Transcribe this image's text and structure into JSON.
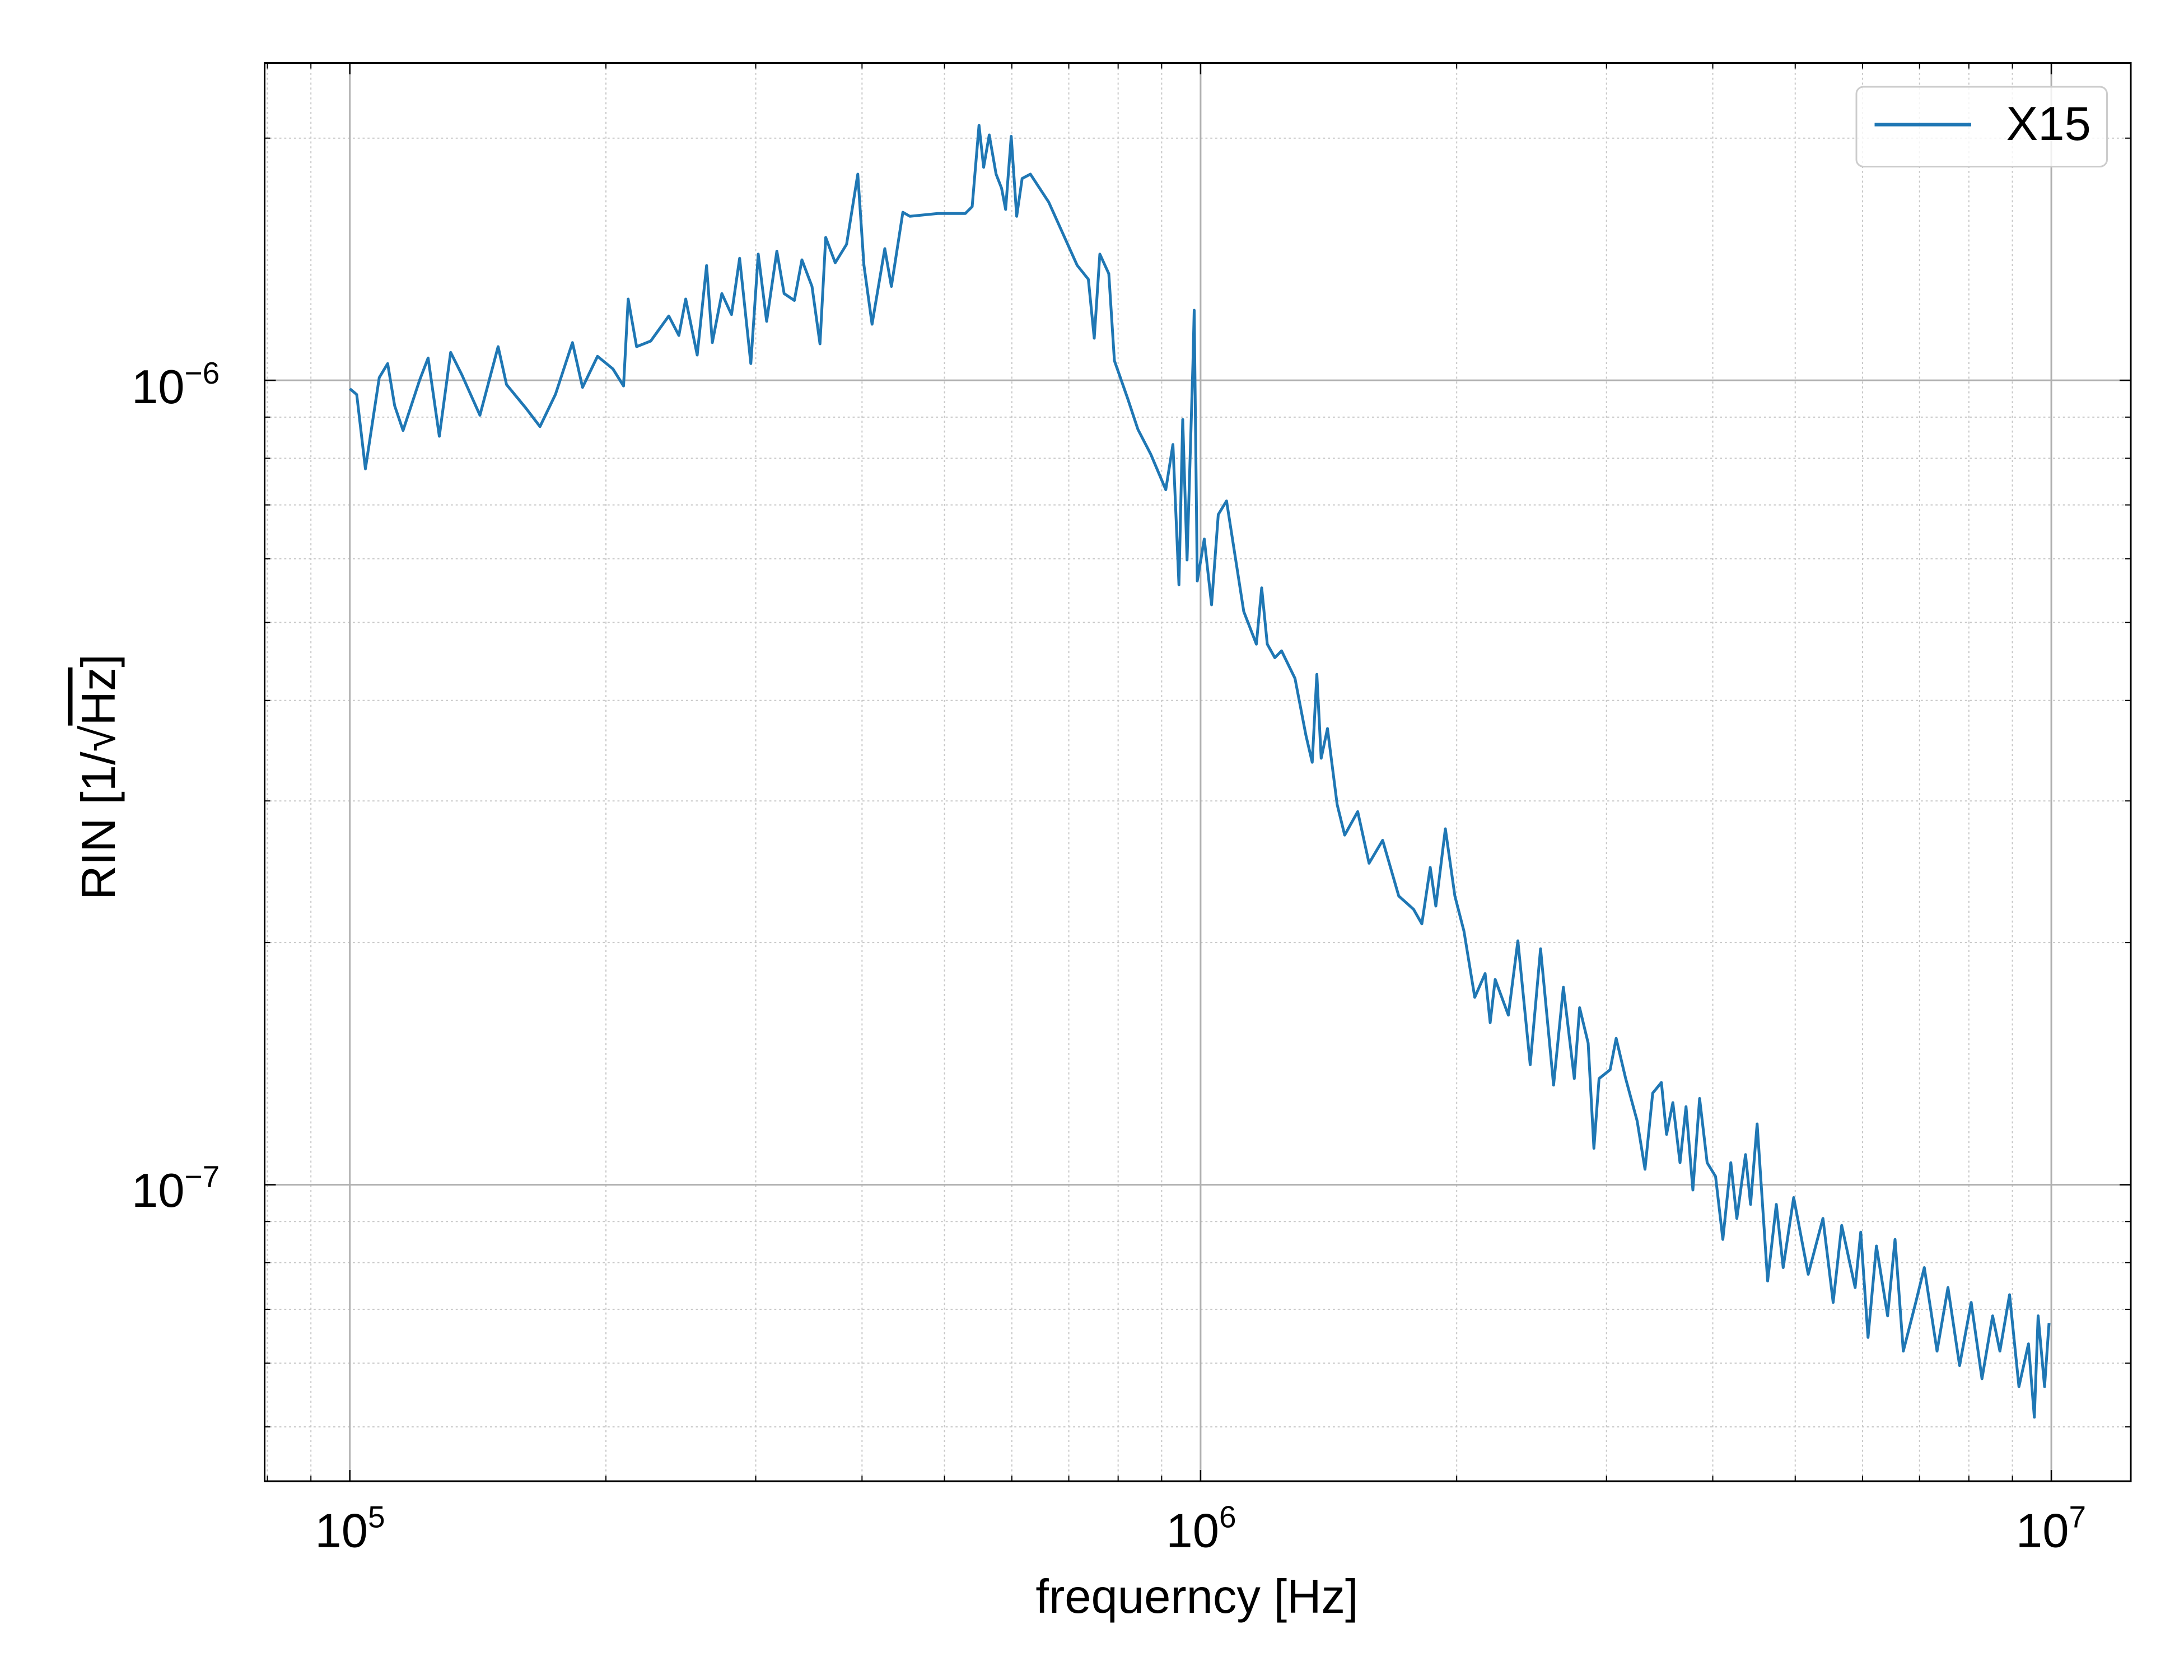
{
  "chart_data": {
    "type": "line",
    "title": "",
    "xlabel": "frequerncy [Hz]",
    "ylabel_prefix": "RIN [1/",
    "ylabel_sqrt": "Hz",
    "ylabel_suffix": "]",
    "xscale": "log",
    "yscale": "log",
    "xlim": [
      79400,
      12400000
    ],
    "ylim": [
      4.28e-08,
      2.48e-06
    ],
    "grid": "major solid, minor dotted",
    "legend_position": "top-right",
    "x_ticks": [
      {
        "base": "10",
        "exp": "5",
        "value": 100000
      },
      {
        "base": "10",
        "exp": "6",
        "value": 1000000
      },
      {
        "base": "10",
        "exp": "7",
        "value": 10000000
      }
    ],
    "y_ticks": [
      {
        "base": "10",
        "exp": "−6",
        "value": 1e-06
      },
      {
        "base": "10",
        "exp": "−7",
        "value": 1e-07
      }
    ],
    "series": [
      {
        "name": "X15",
        "color": "#1f77b4",
        "x": [
          100000,
          101900,
          104300,
          108300,
          110800,
          112900,
          115500,
          120800,
          123600,
          127400,
          131400,
          135400,
          142200,
          149400,
          152800,
          161100,
          167300,
          174500,
          182700,
          187700,
          195500,
          203800,
          209800,
          212400,
          217300,
          225800,
          237100,
          243600,
          248200,
          256000,
          262600,
          266700,
          273700,
          281000,
          287200,
          296000,
          302000,
          309000,
          317600,
          324000,
          333000,
          340000,
          349400,
          357000,
          362500,
          372000,
          383600,
          395500,
          402000,
          411000,
          425400,
          433000,
          446800,
          455300,
          491000,
          529000,
          539000,
          549000,
          556000,
          564500,
          575000,
          583500,
          590000,
          599000,
          608000,
          617000,
          631000,
          663000,
          716000,
          738000,
          750000,
          761500,
          780000,
          792000,
          821000,
          844000,
          874000,
          910000,
          928000,
          943000,
          953000,
          964000,
          979500,
          983000,
          991000,
          1010000,
          1030000,
          1049000,
          1073000,
          1124000,
          1163000,
          1180000,
          1198000,
          1222600,
          1245000,
          1291000,
          1330000,
          1353000,
          1370000,
          1386000,
          1410000,
          1447000,
          1477000,
          1530000,
          1578000,
          1637000,
          1710000,
          1780000,
          1820000,
          1862000,
          1890000,
          1940000,
          1990000,
          2040000,
          2100000,
          2160000,
          2190000,
          2220000,
          2300000,
          2360000,
          2440000,
          2510000,
          2600000,
          2670000,
          2750000,
          2790000,
          2855000,
          2900000,
          2940000,
          3030000,
          3080000,
          3160000,
          3260000,
          3330000,
          3400000,
          3480000,
          3530000,
          3590000,
          3660000,
          3720000,
          3790000,
          3860000,
          3940000,
          4030000,
          4110000,
          4200000,
          4270000,
          4370000,
          4430000,
          4510000,
          4640000,
          4750000,
          4840000,
          4980000,
          5180000,
          5390000,
          5540000,
          5670000,
          5880000,
          5970000,
          6090000,
          6230000,
          6420000,
          6550000,
          6700000,
          6930000,
          7090000,
          7340000,
          7560000,
          7800000,
          8050000,
          8290000,
          8530000,
          8700000,
          8930000,
          9160000,
          9400000,
          9550000,
          9650000,
          9820000,
          9940000
        ],
        "y": [
          9.76e-07,
          9.6e-07,
          7.76e-07,
          1.008e-06,
          1.049e-06,
          9.3e-07,
          8.66e-07,
          1e-06,
          1.066e-06,
          8.52e-07,
          1.083e-06,
          1.016e-06,
          9.05e-07,
          1.101e-06,
          9.88e-07,
          9.23e-07,
          8.76e-07,
          9.61e-07,
          1.114e-06,
          9.8e-07,
          1.071e-06,
          1.033e-06,
          9.84e-07,
          1.262e-06,
          1.101e-06,
          1.119e-06,
          1.202e-06,
          1.137e-06,
          1.262e-06,
          1.075e-06,
          1.389e-06,
          1.114e-06,
          1.282e-06,
          1.207e-06,
          1.418e-06,
          1.049e-06,
          1.435e-06,
          1.184e-06,
          1.447e-06,
          1.282e-06,
          1.257e-06,
          1.412e-06,
          1.308e-06,
          1.11e-06,
          1.505e-06,
          1.4e-06,
          1.476e-06,
          1.804e-06,
          1.39e-06,
          1.174e-06,
          1.458e-06,
          1.308e-06,
          1.618e-06,
          1.599e-06,
          1.612e-06,
          1.612e-06,
          1.644e-06,
          2.075e-06,
          1.84e-06,
          2.018e-06,
          1.804e-06,
          1.733e-06,
          1.631e-06,
          2.01e-06,
          1.599e-06,
          1.782e-06,
          1.804e-06,
          1.665e-06,
          1.39e-06,
          1.335e-06,
          1.128e-06,
          1.435e-06,
          1.357e-06,
          1.058e-06,
          9.49e-07,
          8.69e-07,
          8.09e-07,
          7.31e-07,
          8.32e-07,
          5.57e-07,
          8.94e-07,
          5.98e-07,
          1.049e-06,
          1.222e-06,
          5.63e-07,
          6.35e-07,
          5.26e-07,
          6.81e-07,
          7.08e-07,
          5.16e-07,
          4.7e-07,
          5.52e-07,
          4.7e-07,
          4.52e-07,
          4.61e-07,
          4.26e-07,
          3.62e-07,
          3.35e-07,
          4.31e-07,
          3.39e-07,
          3.69e-07,
          2.97e-07,
          2.72e-07,
          2.91e-07,
          2.51e-07,
          2.68e-07,
          2.285e-07,
          2.2e-07,
          2.11e-07,
          2.48e-07,
          2.22e-07,
          2.77e-07,
          2.285e-07,
          2.066e-07,
          1.71e-07,
          1.83e-07,
          1.59e-07,
          1.8e-07,
          1.625e-07,
          2.01e-07,
          1.41e-07,
          1.965e-07,
          1.33e-07,
          1.76e-07,
          1.355e-07,
          1.66e-07,
          1.5e-07,
          1.11e-07,
          1.355e-07,
          1.39e-07,
          1.52e-07,
          1.355e-07,
          1.2e-07,
          1.045e-07,
          1.3e-07,
          1.34e-07,
          1.155e-07,
          1.265e-07,
          1.065e-07,
          1.25e-07,
          9.85e-08,
          1.28e-07,
          1.065e-07,
          1.024e-07,
          8.55e-08,
          1.065e-07,
          9.08e-08,
          1.09e-07,
          9.45e-08,
          1.19e-07,
          7.59e-08,
          9.45e-08,
          7.89e-08,
          9.64e-08,
          7.74e-08,
          9.08e-08,
          7.14e-08,
          8.9e-08,
          7.45e-08,
          8.73e-08,
          6.46e-08,
          8.39e-08,
          6.87e-08,
          8.55e-08,
          6.21e-08,
          7.14e-08,
          7.89e-08,
          6.21e-08,
          7.45e-08,
          5.96e-08,
          7.14e-08,
          5.74e-08,
          6.87e-08,
          6.21e-08,
          7.3e-08,
          5.61e-08,
          6.34e-08,
          5.14e-08,
          6.87e-08,
          5.61e-08,
          6.73e-08
        ]
      }
    ]
  }
}
